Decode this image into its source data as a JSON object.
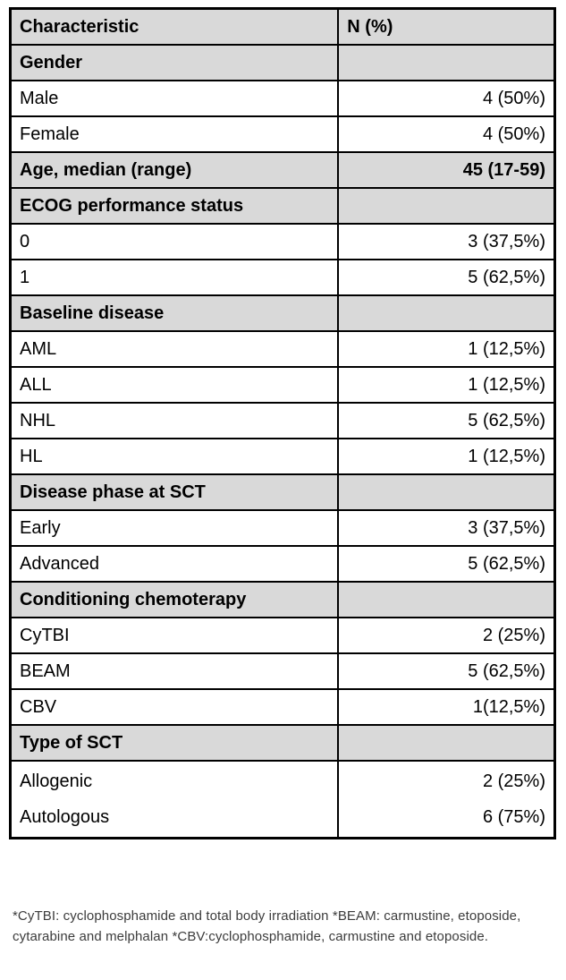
{
  "table": {
    "columns": [
      "Characteristic",
      "N (%)"
    ],
    "rows": [
      {
        "style": "section",
        "label": "Gender",
        "value": ""
      },
      {
        "style": "data",
        "label": "Male",
        "value": "4 (50%)"
      },
      {
        "style": "data",
        "label": "Female",
        "value": "4 (50%)"
      },
      {
        "style": "section",
        "label": "Age, median (range)",
        "value": "45 (17-59)"
      },
      {
        "style": "section",
        "label": "ECOG performance status",
        "value": ""
      },
      {
        "style": "data",
        "label": "0",
        "value": "3 (37,5%)"
      },
      {
        "style": "data",
        "label": "1",
        "value": "5 (62,5%)"
      },
      {
        "style": "section",
        "label": "Baseline disease",
        "value": ""
      },
      {
        "style": "data",
        "label": "AML",
        "value": "1 (12,5%)"
      },
      {
        "style": "data",
        "label": "ALL",
        "value": "1 (12,5%)"
      },
      {
        "style": "data",
        "label": "NHL",
        "value": "5 (62,5%)"
      },
      {
        "style": "data",
        "label": "HL",
        "value": "1 (12,5%)"
      },
      {
        "style": "section",
        "label": "Disease phase at SCT",
        "value": ""
      },
      {
        "style": "data",
        "label": "Early",
        "value": "3 (37,5%)"
      },
      {
        "style": "data",
        "label": "Advanced",
        "value": "5 (62,5%)"
      },
      {
        "style": "section",
        "label": "Conditioning chemoterapy",
        "value": ""
      },
      {
        "style": "data",
        "label": "CyTBI",
        "value": "2 (25%)"
      },
      {
        "style": "data",
        "label": "BEAM",
        "value": "5 (62,5%)"
      },
      {
        "style": "data",
        "label": "CBV",
        "value": "1(12,5%)"
      },
      {
        "style": "section",
        "label": "Type of SCT",
        "value": ""
      },
      {
        "style": "multi",
        "lines": [
          {
            "label": "Allogenic",
            "value": "2 (25%)"
          },
          {
            "label": "Autologous",
            "value": "6 (75%)"
          }
        ]
      }
    ]
  },
  "footnote": "*CyTBI: cyclophosphamide and total body irradiation *BEAM: carmustine, etoposide, cytarabine and melphalan *CBV:cyclophosphamide, carmustine and etoposide."
}
